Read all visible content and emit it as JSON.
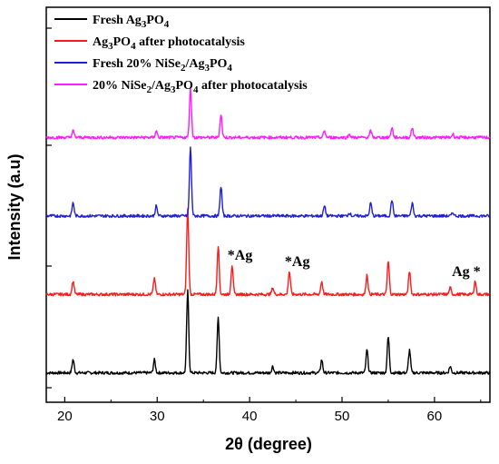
{
  "chart_data": {
    "type": "line",
    "xlabel": "2θ (degree)",
    "ylabel": "Intensity (a.u)",
    "xlim": [
      18,
      66
    ],
    "x_ticks": [
      20,
      30,
      40,
      50,
      60
    ],
    "y_tick_labels_shown": false,
    "grid": false,
    "legend_position": "top-left",
    "legend": [
      {
        "color": "#000000",
        "parts": [
          [
            "Fresh Ag",
            false
          ],
          [
            "3",
            true
          ],
          [
            "PO",
            false
          ],
          [
            "4",
            true
          ]
        ]
      },
      {
        "color": "#ff1a1a",
        "parts": [
          [
            "Ag",
            false
          ],
          [
            "3",
            true
          ],
          [
            "PO",
            false
          ],
          [
            "4",
            true
          ],
          [
            " after photocatalysis",
            false
          ]
        ]
      },
      {
        "color": "#1f1fd6",
        "parts": [
          [
            "Fresh 20% NiSe",
            false
          ],
          [
            "2",
            true
          ],
          [
            "/Ag",
            false
          ],
          [
            "3",
            true
          ],
          [
            "PO",
            false
          ],
          [
            "4",
            true
          ]
        ]
      },
      {
        "color": "#ff1aff",
        "parts": [
          [
            "20% NiSe",
            false
          ],
          [
            "2",
            true
          ],
          [
            "/Ag",
            false
          ],
          [
            "3",
            true
          ],
          [
            "PO",
            false
          ],
          [
            "4",
            true
          ],
          [
            " after photocatalysis",
            false
          ]
        ]
      }
    ],
    "series": [
      {
        "key": "fresh_ag3po4",
        "color": "#000000",
        "baseline": 4,
        "peaks": [
          [
            20.9,
            4
          ],
          [
            29.7,
            4
          ],
          [
            33.3,
            25
          ],
          [
            36.6,
            17
          ],
          [
            42.5,
            2
          ],
          [
            47.8,
            4
          ],
          [
            52.7,
            7
          ],
          [
            55.0,
            11
          ],
          [
            57.3,
            7
          ],
          [
            61.7,
            2
          ]
        ]
      },
      {
        "key": "ag3po4_after",
        "color": "#ff1a1a",
        "baseline": 28,
        "peaks": [
          [
            20.9,
            4
          ],
          [
            29.7,
            5
          ],
          [
            33.3,
            26
          ],
          [
            36.6,
            15
          ],
          [
            38.1,
            9
          ],
          [
            42.5,
            2
          ],
          [
            44.3,
            7
          ],
          [
            47.8,
            4
          ],
          [
            52.7,
            6
          ],
          [
            55.0,
            10
          ],
          [
            57.3,
            7
          ],
          [
            61.7,
            2
          ],
          [
            64.4,
            4
          ]
        ]
      },
      {
        "key": "fresh_nise2",
        "color": "#1f1fd6",
        "baseline": 52,
        "peaks": [
          [
            20.9,
            4
          ],
          [
            29.9,
            3
          ],
          [
            33.6,
            21
          ],
          [
            36.9,
            9
          ],
          [
            48.1,
            3
          ],
          [
            50.8,
            1
          ],
          [
            53.1,
            4
          ],
          [
            55.4,
            5
          ],
          [
            57.6,
            4
          ],
          [
            62.0,
            1
          ]
        ]
      },
      {
        "key": "after_nise2",
        "color": "#ff1aff",
        "baseline": 76,
        "peaks": [
          [
            20.9,
            2
          ],
          [
            29.9,
            2
          ],
          [
            33.6,
            15
          ],
          [
            36.9,
            7
          ],
          [
            48.1,
            2
          ],
          [
            50.8,
            1
          ],
          [
            53.1,
            2
          ],
          [
            55.4,
            3
          ],
          [
            57.6,
            3
          ],
          [
            62.0,
            1
          ]
        ]
      }
    ],
    "annotations": [
      {
        "text": "*Ag",
        "x": 38.1,
        "anchor": "start"
      },
      {
        "text": "*Ag",
        "x": 44.3,
        "anchor": "start"
      },
      {
        "text": "Ag *",
        "x": 64.4,
        "anchor": "end"
      }
    ]
  }
}
